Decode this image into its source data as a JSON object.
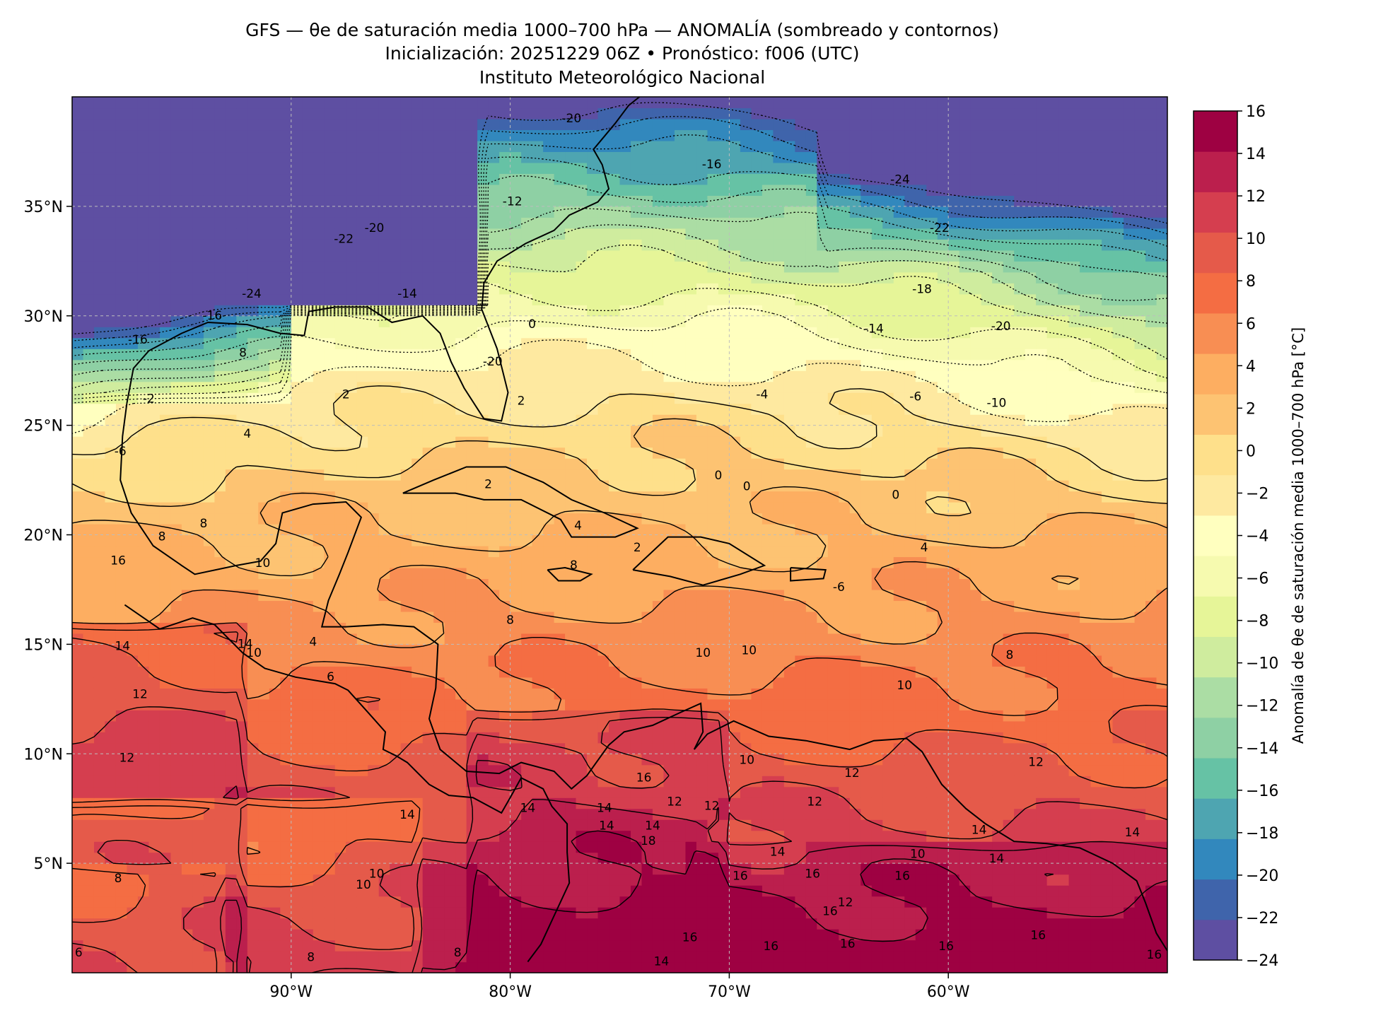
{
  "header": {
    "line1": "GFS — θe de saturación media 1000–700 hPa — ANOMALÍA (sombreado y contornos)",
    "line2": "Inicialización: 20251229 06Z   •   Pronóstico: f006 (UTC)",
    "line3": "Instituto Meteorológico Nacional"
  },
  "map": {
    "lon_ticks": [
      "90°W",
      "80°W",
      "70°W",
      "60°W"
    ],
    "lat_ticks": [
      "35°N",
      "30°N",
      "25°N",
      "20°N",
      "15°N",
      "10°N",
      "5°N"
    ],
    "lon_values": [
      -90,
      -80,
      -70,
      -60
    ],
    "lat_values": [
      35,
      30,
      25,
      20,
      15,
      10,
      5
    ],
    "extent": {
      "lon": [
        -100,
        -50
      ],
      "lat": [
        0,
        40
      ]
    },
    "gridlines": "dashed light gray",
    "projection": "PlateCarree"
  },
  "colorbar": {
    "label": "Anomalía de θe de saturación media 1000–700 hPa [°C]",
    "ticks": [
      "16",
      "14",
      "12",
      "10",
      "8",
      "6",
      "4",
      "2",
      "0",
      "−2",
      "−4",
      "−6",
      "−8",
      "−10",
      "−12",
      "−14",
      "−16",
      "−18",
      "−20",
      "−22",
      "−24"
    ],
    "colormap": "Spectral",
    "colors_bottom_to_top": [
      "#5e4fa2",
      "#3f64ab",
      "#3288bd",
      "#4ea5b1",
      "#66c2a5",
      "#8ed0a4",
      "#abdda4",
      "#cfec9e",
      "#e6f598",
      "#f6faaf",
      "#ffffbf",
      "#fee9a0",
      "#fee08b",
      "#fdc372",
      "#fdae61",
      "#f88e53",
      "#f46d43",
      "#e55a4a",
      "#d53e4f",
      "#bb1f4d",
      "#9e0142"
    ]
  },
  "contour_labels": [
    {
      "text": "-20",
      "lon": -77.2,
      "lat": 39.0
    },
    {
      "text": "-16",
      "lon": -70.8,
      "lat": 36.9
    },
    {
      "text": "-24",
      "lon": -62.2,
      "lat": 36.2
    },
    {
      "text": "-12",
      "lon": -79.9,
      "lat": 35.2
    },
    {
      "text": "-22",
      "lon": -60.4,
      "lat": 34.0
    },
    {
      "text": "-22",
      "lon": -87.6,
      "lat": 33.5
    },
    {
      "text": "-20",
      "lon": -86.2,
      "lat": 34.0
    },
    {
      "text": "-18",
      "lon": -61.2,
      "lat": 31.2
    },
    {
      "text": "-24",
      "lon": -91.8,
      "lat": 31.0
    },
    {
      "text": "-14",
      "lon": -84.7,
      "lat": 31.0
    },
    {
      "text": "-16",
      "lon": -93.6,
      "lat": 30.0
    },
    {
      "text": "-20",
      "lon": -57.6,
      "lat": 29.5
    },
    {
      "text": "-14",
      "lon": -63.4,
      "lat": 29.4
    },
    {
      "text": "-16",
      "lon": -97.0,
      "lat": 28.9
    },
    {
      "text": "0",
      "lon": -79.0,
      "lat": 29.6
    },
    {
      "text": "8",
      "lon": -92.2,
      "lat": 28.3
    },
    {
      "text": "-20",
      "lon": -80.8,
      "lat": 27.9
    },
    {
      "text": "-4",
      "lon": -68.5,
      "lat": 26.4
    },
    {
      "text": "-6",
      "lon": -61.5,
      "lat": 26.3
    },
    {
      "text": "-10",
      "lon": -57.8,
      "lat": 26.0
    },
    {
      "text": "-2",
      "lon": -96.5,
      "lat": 26.2
    },
    {
      "text": "2",
      "lon": -87.5,
      "lat": 26.4
    },
    {
      "text": "2",
      "lon": -79.5,
      "lat": 26.1
    },
    {
      "text": "4",
      "lon": -92.0,
      "lat": 24.6
    },
    {
      "text": "-6",
      "lon": -97.8,
      "lat": 23.8
    },
    {
      "text": "0",
      "lon": -70.5,
      "lat": 22.7
    },
    {
      "text": "0",
      "lon": -69.2,
      "lat": 22.2
    },
    {
      "text": "0",
      "lon": -62.4,
      "lat": 21.8
    },
    {
      "text": "2",
      "lon": -81.0,
      "lat": 22.3
    },
    {
      "text": "8",
      "lon": -94.0,
      "lat": 20.5
    },
    {
      "text": "8",
      "lon": -95.9,
      "lat": 19.9
    },
    {
      "text": "4",
      "lon": -76.9,
      "lat": 20.4
    },
    {
      "text": "2",
      "lon": -74.2,
      "lat": 19.4
    },
    {
      "text": "4",
      "lon": -61.1,
      "lat": 19.4
    },
    {
      "text": "10",
      "lon": -91.3,
      "lat": 18.7
    },
    {
      "text": "16",
      "lon": -97.9,
      "lat": 18.8
    },
    {
      "text": "8",
      "lon": -77.1,
      "lat": 18.6
    },
    {
      "text": "-6",
      "lon": -65.0,
      "lat": 17.6
    },
    {
      "text": "8",
      "lon": -80.0,
      "lat": 16.1
    },
    {
      "text": "4",
      "lon": -89.0,
      "lat": 15.1
    },
    {
      "text": "14",
      "lon": -92.1,
      "lat": 15.0
    },
    {
      "text": "10",
      "lon": -91.7,
      "lat": 14.6
    },
    {
      "text": "14",
      "lon": -97.7,
      "lat": 14.9
    },
    {
      "text": "6",
      "lon": -88.2,
      "lat": 13.5
    },
    {
      "text": "10",
      "lon": -71.2,
      "lat": 14.6
    },
    {
      "text": "10",
      "lon": -69.1,
      "lat": 14.7
    },
    {
      "text": "8",
      "lon": -57.2,
      "lat": 14.5
    },
    {
      "text": "10",
      "lon": -62.0,
      "lat": 13.1
    },
    {
      "text": "12",
      "lon": -96.9,
      "lat": 12.7
    },
    {
      "text": "12",
      "lon": -97.5,
      "lat": 9.8
    },
    {
      "text": "10",
      "lon": -69.2,
      "lat": 9.7
    },
    {
      "text": "12",
      "lon": -56.0,
      "lat": 9.6
    },
    {
      "text": "12",
      "lon": -64.4,
      "lat": 9.1
    },
    {
      "text": "16",
      "lon": -73.9,
      "lat": 8.9
    },
    {
      "text": "12",
      "lon": -72.5,
      "lat": 7.8
    },
    {
      "text": "12",
      "lon": -66.1,
      "lat": 7.8
    },
    {
      "text": "12",
      "lon": -70.8,
      "lat": 7.6
    },
    {
      "text": "14",
      "lon": -79.2,
      "lat": 7.5
    },
    {
      "text": "14",
      "lon": -75.6,
      "lat": 6.7
    },
    {
      "text": "14",
      "lon": -75.7,
      "lat": 7.5
    },
    {
      "text": "14",
      "lon": -73.5,
      "lat": 6.7
    },
    {
      "text": "14",
      "lon": -84.7,
      "lat": 7.2
    },
    {
      "text": "14",
      "lon": -58.6,
      "lat": 6.5
    },
    {
      "text": "14",
      "lon": -51.6,
      "lat": 6.4
    },
    {
      "text": "18",
      "lon": -73.7,
      "lat": 6.0
    },
    {
      "text": "14",
      "lon": -67.8,
      "lat": 5.5
    },
    {
      "text": "10",
      "lon": -61.4,
      "lat": 5.4
    },
    {
      "text": "14",
      "lon": -57.8,
      "lat": 5.2
    },
    {
      "text": "10",
      "lon": -86.1,
      "lat": 4.5
    },
    {
      "text": "16",
      "lon": -69.5,
      "lat": 4.4
    },
    {
      "text": "16",
      "lon": -66.2,
      "lat": 4.5
    },
    {
      "text": "16",
      "lon": -62.1,
      "lat": 4.4
    },
    {
      "text": "8",
      "lon": -97.9,
      "lat": 4.3
    },
    {
      "text": "10",
      "lon": -86.7,
      "lat": 4.0
    },
    {
      "text": "12",
      "lon": -64.7,
      "lat": 3.2
    },
    {
      "text": "16",
      "lon": -65.4,
      "lat": 2.8
    },
    {
      "text": "16",
      "lon": -71.8,
      "lat": 1.6
    },
    {
      "text": "16",
      "lon": -68.1,
      "lat": 1.2
    },
    {
      "text": "16",
      "lon": -64.6,
      "lat": 1.3
    },
    {
      "text": "16",
      "lon": -60.1,
      "lat": 1.2
    },
    {
      "text": "16",
      "lon": -55.9,
      "lat": 1.7
    },
    {
      "text": "14",
      "lon": -73.1,
      "lat": 0.5
    },
    {
      "text": "8",
      "lon": -89.1,
      "lat": 0.7
    },
    {
      "text": "8",
      "lon": -82.4,
      "lat": 0.9
    },
    {
      "text": "6",
      "lon": -99.7,
      "lat": 0.9
    },
    {
      "text": "16",
      "lon": -50.6,
      "lat": 0.8
    }
  ]
}
